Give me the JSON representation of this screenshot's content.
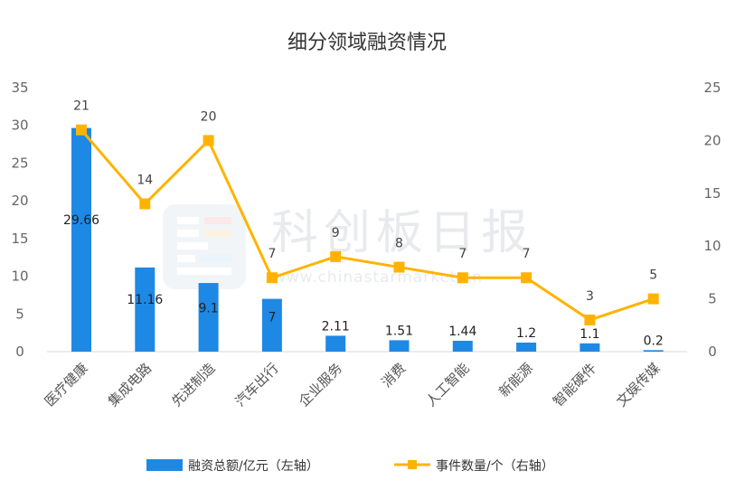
{
  "chart_data": {
    "type": "bar",
    "title": "细分领域融资情况",
    "categories": [
      "医疗健康",
      "集成电路",
      "先进制造",
      "汽车出行",
      "企业服务",
      "消费",
      "人工智能",
      "新能源",
      "智能硬件",
      "文娱传媒"
    ],
    "series": [
      {
        "name": "融资总额/亿元（左轴）",
        "type": "bar",
        "axis": "left",
        "values": [
          29.66,
          11.16,
          9.1,
          7,
          2.11,
          1.51,
          1.44,
          1.2,
          1.1,
          0.2
        ],
        "labels": [
          "29.66",
          "11.16",
          "9.1",
          "7",
          "2.11",
          "1.51",
          "1.44",
          "1.2",
          "1.1",
          "0.2"
        ]
      },
      {
        "name": "事件数量/个（右轴）",
        "type": "line",
        "axis": "right",
        "values": [
          21,
          14,
          20,
          7,
          9,
          8,
          7,
          7,
          3,
          5
        ],
        "labels": [
          "21",
          "14",
          "20",
          "7",
          "9",
          "8",
          "7",
          "7",
          "3",
          "5"
        ]
      }
    ],
    "y_left": {
      "min": 0,
      "max": 35,
      "ticks": [
        "0",
        "5",
        "10",
        "15",
        "20",
        "25",
        "30",
        "35"
      ]
    },
    "y_right": {
      "min": 0,
      "max": 25,
      "ticks": [
        "0",
        "5",
        "10",
        "15",
        "20",
        "25"
      ]
    },
    "grid": false,
    "legend_position": "bottom",
    "colors": {
      "bar": "#1E88E5",
      "line": "#FFB300"
    }
  },
  "watermark": {
    "text": "科创板日报",
    "url": "www.chinastarmarket.cn"
  }
}
